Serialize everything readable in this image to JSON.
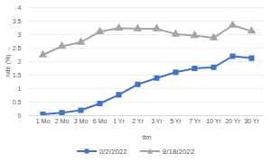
{
  "chart_data": {
    "type": "line",
    "x_label": "ttm",
    "y_label": "rate (%)",
    "categories": [
      "1 Mo",
      "2 Mo",
      "3 Mo",
      "6 Mo",
      "1 Yr",
      "2 Yr",
      "3 Yr",
      "5 Yr",
      "7 Yr",
      "10 Yr",
      "20 Yr",
      "30 Yr"
    ],
    "series": [
      {
        "name": "2/2/2022",
        "color": "#4472c4",
        "marker": "square",
        "values": [
          0.05,
          0.11,
          0.2,
          0.45,
          0.77,
          1.16,
          1.39,
          1.61,
          1.75,
          1.79,
          2.2,
          2.13
        ]
      },
      {
        "name": "8/18/2022",
        "color": "#a5a5a5",
        "marker": "triangle",
        "values": [
          2.25,
          2.57,
          2.72,
          3.11,
          3.24,
          3.22,
          3.22,
          3.02,
          2.97,
          2.88,
          3.35,
          3.13
        ]
      }
    ],
    "ylim": [
      0,
      4
    ],
    "yticks": [
      0,
      0.5,
      1,
      1.5,
      2,
      2.5,
      3,
      3.5,
      4
    ],
    "grid": true,
    "legend": "bottom"
  }
}
